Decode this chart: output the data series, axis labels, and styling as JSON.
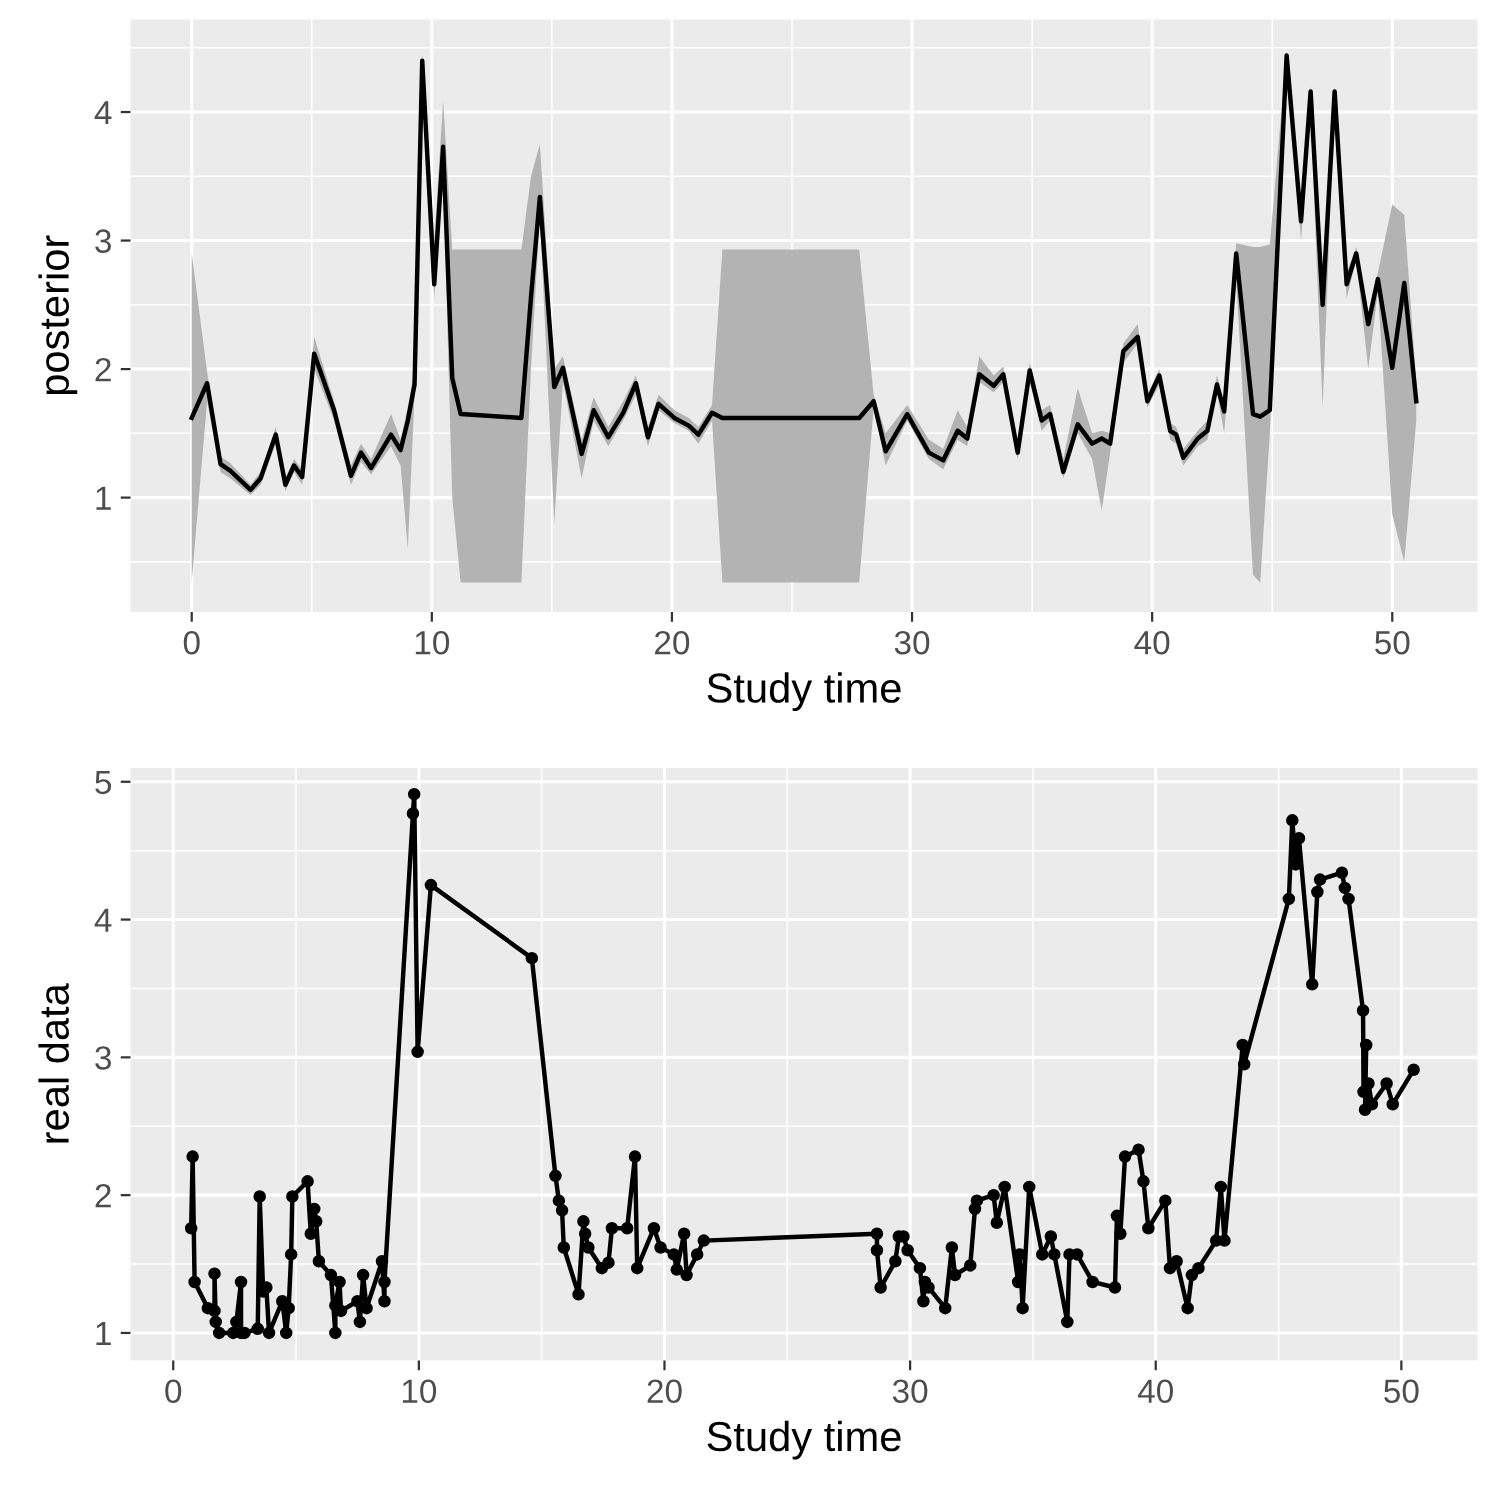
{
  "chart_data": [
    {
      "type": "line",
      "xlabel": "Study time",
      "ylabel": "posterior",
      "xlim": [
        -2.55,
        53.55
      ],
      "ylim": [
        0.11,
        4.72
      ],
      "xticks": [
        0,
        10,
        20,
        30,
        40,
        50
      ],
      "yticks": [
        1,
        2,
        3,
        4
      ],
      "grid": true,
      "series": [
        {
          "color": "#000000",
          "x": [
            0,
            0.64,
            1.2,
            1.6,
            2.45,
            2.87,
            3.5,
            3.9,
            4.26,
            4.6,
            5.1,
            5.93,
            6.63,
            7.05,
            7.47,
            8.3,
            8.7,
            9.0,
            9.28,
            9.6,
            10.1,
            10.47,
            10.85,
            11.2,
            13.73,
            14.13,
            14.5,
            15.1,
            15.46,
            16.24,
            16.74,
            17.35,
            17.97,
            18.5,
            19.0,
            19.44,
            20.1,
            20.7,
            21.1,
            21.67,
            22.1,
            24.5,
            27.8,
            28.4,
            28.9,
            29.8,
            30.7,
            31.3,
            31.9,
            32.3,
            32.8,
            33.4,
            33.8,
            34.4,
            34.9,
            35.4,
            35.75,
            36.3,
            36.9,
            37.5,
            37.9,
            38.25,
            38.8,
            39.4,
            39.8,
            40.3,
            40.75,
            41.0,
            41.3,
            41.9,
            42.3,
            42.7,
            43.0,
            43.5,
            44.2,
            44.5,
            44.9,
            45.6,
            46.2,
            46.6,
            47.1,
            47.6,
            48.1,
            48.5,
            49.0,
            49.4,
            50.0,
            50.5,
            51.0
          ],
          "values": [
            1.62,
            1.89,
            1.26,
            1.21,
            1.06,
            1.15,
            1.49,
            1.1,
            1.25,
            1.16,
            2.12,
            1.68,
            1.17,
            1.35,
            1.23,
            1.49,
            1.37,
            1.6,
            1.88,
            4.4,
            2.66,
            3.73,
            1.93,
            1.65,
            1.62,
            2.56,
            3.34,
            1.86,
            2.01,
            1.34,
            1.68,
            1.47,
            1.66,
            1.89,
            1.47,
            1.73,
            1.62,
            1.56,
            1.49,
            1.66,
            1.62,
            1.62,
            1.62,
            1.75,
            1.36,
            1.65,
            1.35,
            1.29,
            1.52,
            1.46,
            1.96,
            1.87,
            1.96,
            1.35,
            1.99,
            1.6,
            1.65,
            1.2,
            1.57,
            1.42,
            1.46,
            1.42,
            2.14,
            2.25,
            1.75,
            1.95,
            1.52,
            1.49,
            1.31,
            1.46,
            1.52,
            1.88,
            1.67,
            2.9,
            1.65,
            1.63,
            1.68,
            4.44,
            3.15,
            4.16,
            2.5,
            4.16,
            2.66,
            2.9,
            2.35,
            2.7,
            2.01,
            2.67,
            1.75
          ],
          "lower": [
            0.35,
            1.75,
            1.2,
            1.15,
            1.02,
            1.1,
            1.42,
            1.05,
            1.2,
            1.1,
            2.0,
            1.6,
            1.1,
            1.28,
            1.18,
            1.4,
            1.25,
            0.6,
            1.8,
            4.3,
            2.55,
            3.5,
            1.0,
            0.34,
            0.34,
            2.0,
            3.2,
            0.8,
            1.9,
            1.15,
            1.6,
            1.4,
            1.6,
            1.8,
            1.4,
            1.68,
            1.58,
            1.52,
            1.42,
            1.6,
            0.34,
            0.34,
            0.34,
            1.7,
            1.25,
            1.6,
            1.3,
            1.22,
            1.45,
            1.4,
            1.9,
            1.82,
            1.9,
            1.3,
            1.9,
            1.52,
            1.6,
            1.15,
            1.5,
            1.3,
            0.9,
            1.35,
            2.05,
            2.2,
            1.7,
            1.88,
            1.45,
            1.42,
            1.25,
            1.4,
            1.45,
            1.82,
            1.5,
            2.7,
            0.4,
            0.34,
            1.5,
            4.38,
            3.0,
            4.0,
            1.7,
            4.1,
            2.55,
            2.85,
            2.0,
            2.6,
            0.87,
            0.5,
            1.6
          ],
          "upper": [
            2.9,
            1.98,
            1.32,
            1.27,
            1.1,
            1.2,
            1.55,
            1.15,
            1.3,
            1.22,
            2.25,
            1.75,
            1.25,
            1.42,
            1.3,
            1.65,
            1.45,
            1.7,
            2.0,
            4.45,
            3.0,
            4.09,
            2.93,
            2.93,
            2.93,
            3.5,
            3.75,
            2.0,
            2.1,
            1.45,
            1.78,
            1.55,
            1.75,
            1.95,
            1.55,
            1.8,
            1.68,
            1.62,
            1.55,
            1.72,
            2.93,
            2.93,
            2.93,
            1.8,
            1.5,
            1.72,
            1.45,
            1.38,
            1.68,
            1.55,
            2.1,
            1.95,
            2.02,
            1.45,
            2.05,
            1.68,
            1.72,
            1.3,
            1.85,
            1.5,
            1.52,
            1.5,
            2.2,
            2.35,
            1.8,
            2.0,
            1.58,
            1.55,
            1.38,
            1.52,
            1.6,
            1.95,
            1.75,
            2.98,
            2.95,
            2.95,
            2.97,
            4.47,
            3.3,
            4.2,
            2.6,
            4.2,
            2.75,
            2.95,
            2.45,
            2.75,
            3.28,
            3.2,
            1.9
          ]
        }
      ]
    },
    {
      "type": "line",
      "xlabel": "Study time",
      "ylabel": "real data",
      "xlim": [
        -1.74,
        53.1
      ],
      "ylim": [
        0.8,
        5.1
      ],
      "xticks": [
        0,
        10,
        20,
        30,
        40,
        50
      ],
      "yticks": [
        1,
        2,
        3,
        4,
        5
      ],
      "grid": true,
      "marker": "circle",
      "series": [
        {
          "color": "#000000",
          "x": [
            0.73,
            0.79,
            0.87,
            1.41,
            1.68,
            1.68,
            1.73,
            1.87,
            2.44,
            2.57,
            2.76,
            2.76,
            2.9,
            3.44,
            3.52,
            3.66,
            3.79,
            3.9,
            4.44,
            4.6,
            4.7,
            4.8,
            4.85,
            5.47,
            5.6,
            5.74,
            5.82,
            5.93,
            6.42,
            6.6,
            6.6,
            6.77,
            6.83,
            7.5,
            7.6,
            7.73,
            7.87,
            8.5,
            8.6,
            8.6,
            9.76,
            9.81,
            9.95,
            10.49,
            14.6,
            15.56,
            15.7,
            15.83,
            15.9,
            16.5,
            16.7,
            16.77,
            16.9,
            17.45,
            17.72,
            17.86,
            18.48,
            18.8,
            18.89,
            19.57,
            19.84,
            20.38,
            20.5,
            20.8,
            20.9,
            21.33,
            21.6,
            28.65,
            28.65,
            28.8,
            29.4,
            29.54,
            29.73,
            29.9,
            30.4,
            30.54,
            30.6,
            30.75,
            31.43,
            31.7,
            31.83,
            32.45,
            32.64,
            32.72,
            33.4,
            33.53,
            33.85,
            34.4,
            34.47,
            34.58,
            34.85,
            35.38,
            35.73,
            35.87,
            36.4,
            36.49,
            36.8,
            37.43,
            38.34,
            38.42,
            38.56,
            38.75,
            39.3,
            39.5,
            39.7,
            40.39,
            40.58,
            40.85,
            41.3,
            41.47,
            41.74,
            42.46,
            42.65,
            42.8,
            43.54,
            43.6,
            45.42,
            45.56,
            45.7,
            45.83,
            46.37,
            46.58,
            46.69,
            47.58,
            47.7,
            47.85,
            48.44,
            48.46,
            48.57,
            48.52,
            48.66,
            48.8,
            49.4,
            49.65,
            50.5
          ],
          "values": [
            1.76,
            2.28,
            1.37,
            1.18,
            1.16,
            1.43,
            1.08,
            1.0,
            1.0,
            1.08,
            1.37,
            1.0,
            1.0,
            1.03,
            1.99,
            1.3,
            1.33,
            1.0,
            1.23,
            1.0,
            1.18,
            1.57,
            1.99,
            2.1,
            1.72,
            1.9,
            1.81,
            1.52,
            1.42,
            1.0,
            1.2,
            1.37,
            1.16,
            1.23,
            1.08,
            1.42,
            1.18,
            1.52,
            1.23,
            1.37,
            4.77,
            4.91,
            3.04,
            4.25,
            3.72,
            2.14,
            1.96,
            1.89,
            1.62,
            1.28,
            1.81,
            1.72,
            1.62,
            1.47,
            1.51,
            1.76,
            1.76,
            2.28,
            1.47,
            1.76,
            1.62,
            1.57,
            1.46,
            1.72,
            1.42,
            1.57,
            1.67,
            1.72,
            1.6,
            1.33,
            1.52,
            1.7,
            1.7,
            1.6,
            1.47,
            1.23,
            1.37,
            1.33,
            1.18,
            1.62,
            1.42,
            1.49,
            1.9,
            1.96,
            2.0,
            1.8,
            2.06,
            1.37,
            1.57,
            1.18,
            2.06,
            1.57,
            1.7,
            1.57,
            1.08,
            1.57,
            1.57,
            1.37,
            1.33,
            1.85,
            1.72,
            2.28,
            2.33,
            2.1,
            1.76,
            1.96,
            1.47,
            1.52,
            1.18,
            1.42,
            1.47,
            1.67,
            2.06,
            1.67,
            3.09,
            2.95,
            4.15,
            4.72,
            4.4,
            4.59,
            3.53,
            4.2,
            4.29,
            4.34,
            4.23,
            4.15,
            3.34,
            2.75,
            3.09,
            2.62,
            2.81,
            2.66,
            2.81,
            2.66,
            2.91
          ]
        }
      ]
    }
  ]
}
